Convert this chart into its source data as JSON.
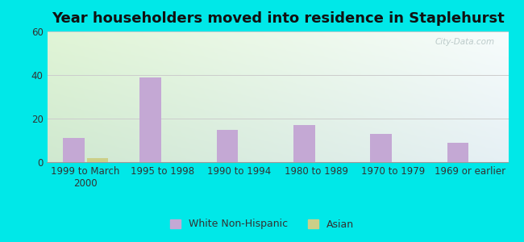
{
  "title": "Year householders moved into residence in Staplehurst",
  "categories": [
    "1999 to March\n2000",
    "1995 to 1998",
    "1990 to 1994",
    "1980 to 1989",
    "1970 to 1979",
    "1969 or earlier"
  ],
  "white_non_hispanic": [
    11,
    39,
    15,
    17,
    13,
    9
  ],
  "asian": [
    2,
    0,
    0,
    0,
    0,
    0
  ],
  "white_color": "#c4a8d4",
  "asian_color": "#cccf88",
  "bg_outer": "#00e8e8",
  "ylim": [
    0,
    60
  ],
  "yticks": [
    0,
    20,
    40,
    60
  ],
  "title_fontsize": 13,
  "tick_fontsize": 8.5,
  "legend_fontsize": 9,
  "bar_width": 0.28,
  "watermark": "City-Data.com"
}
